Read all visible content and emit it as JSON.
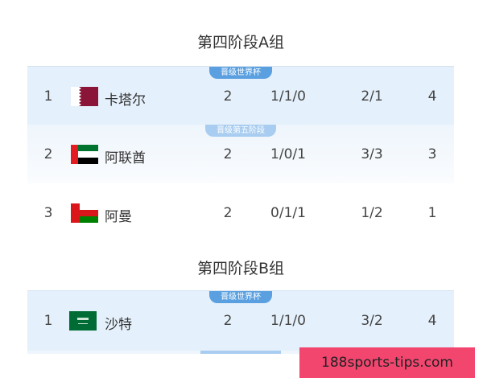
{
  "groups": [
    {
      "title": "第四阶段A组",
      "rows": [
        {
          "badge": "晋级世界杯",
          "rank": "1",
          "flag": "qatar-flag",
          "team": "卡塔尔",
          "played": "2",
          "wdl": "1/1/0",
          "goals": "2/1",
          "points": "4"
        },
        {
          "badge": "晋级第五阶段",
          "rank": "2",
          "flag": "uae-flag",
          "team": "阿联酋",
          "played": "2",
          "wdl": "1/0/1",
          "goals": "3/3",
          "points": "3"
        },
        {
          "rank": "3",
          "flag": "oman-flag",
          "team": "阿曼",
          "played": "2",
          "wdl": "0/1/1",
          "goals": "1/2",
          "points": "1"
        }
      ]
    },
    {
      "title": "第四阶段B组",
      "rows": [
        {
          "badge": "晋级世界杯",
          "rank": "1",
          "flag": "saudi-flag",
          "team": "沙特",
          "played": "2",
          "wdl": "1/1/0",
          "goals": "3/2",
          "points": "4"
        }
      ]
    }
  ],
  "watermark": "188sports-tips.com",
  "colors": {
    "qualified_bg": "#e4f0fb",
    "badge": "#5aa0e0",
    "badge_light": "#a9cdf0",
    "watermark_bg": "#f2466f"
  }
}
